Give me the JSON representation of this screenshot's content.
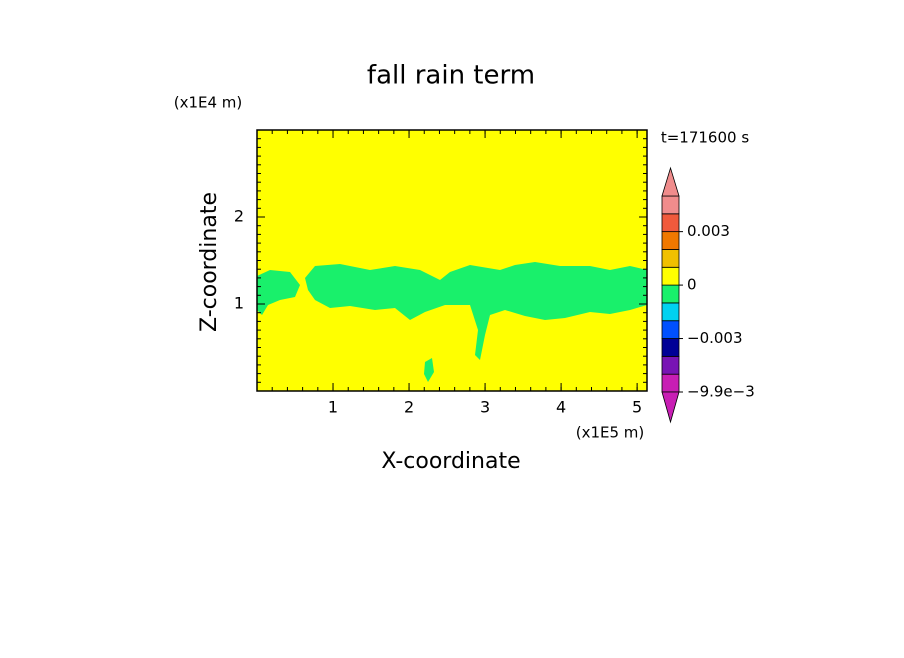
{
  "chart_data": {
    "type": "contour",
    "title": "fall rain term",
    "x_label": "X-coordinate",
    "y_label": "Z-coordinate",
    "x_unit": "(x1E5 m)",
    "y_unit": "(x1E4 m)",
    "annotation": "t=171600 s",
    "xlim": [
      0,
      5.13
    ],
    "xticks": [
      1,
      2,
      3,
      4,
      5
    ],
    "ylim": [
      0,
      3
    ],
    "yticks": [
      1,
      2
    ],
    "colorbar": {
      "levels": [
        -0.0099,
        -0.006,
        -0.004,
        -0.003,
        -0.002,
        -0.001,
        0,
        0.001,
        0.002,
        0.003,
        0.004,
        0.005
      ],
      "colors": [
        "#c81eb4",
        "#7814b4",
        "#000096",
        "#0050ff",
        "#00d2f0",
        "#19f06b",
        "#ffff00",
        "#f0c000",
        "#f07800",
        "#f05a3c",
        "#f08c8c"
      ],
      "extend_colors": [
        "#c81eb4",
        "#f08c8c"
      ],
      "ticks": [
        {
          "value": -0.0099,
          "label": "−9.9e−3"
        },
        {
          "value": -0.003,
          "label": "−0.003"
        },
        0,
        0.003
      ]
    }
  }
}
